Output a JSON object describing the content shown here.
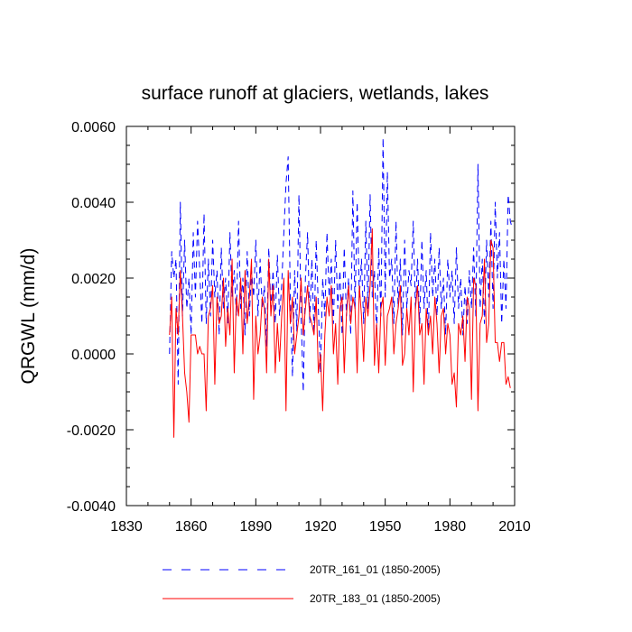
{
  "chart_data": {
    "type": "line",
    "title": "surface runoff at glaciers, wetlands, lakes",
    "xlabel": "",
    "ylabel": "QRGWL  (mm/d)",
    "xlim": [
      1830,
      2010
    ],
    "ylim": [
      -0.004,
      0.006
    ],
    "xticks": [
      1830,
      1860,
      1890,
      1920,
      1950,
      1980,
      2010
    ],
    "xtick_labels": [
      "1830",
      "1860",
      "1890",
      "1920",
      "1950",
      "1980",
      "2010"
    ],
    "yticks": [
      -0.004,
      -0.002,
      0.0,
      0.002,
      0.004,
      0.006
    ],
    "ytick_labels": [
      "-0.0040",
      "-0.0020",
      "0.0000",
      "0.0020",
      "0.0040",
      "0.0060"
    ],
    "x_start": 1850,
    "series": [
      {
        "name": "20TR_161_01 (1850-2005)",
        "color": "#0000ff",
        "dash": "dashed",
        "values": [
          0.0,
          0.0027,
          0.002,
          0.0025,
          -0.0008,
          0.004,
          0.001,
          0.003,
          0.0012,
          0.002,
          0.0005,
          0.0032,
          0.0015,
          0.0035,
          0.0022,
          0.0008,
          0.0037,
          0.0008,
          0.0025,
          0.001,
          0.003,
          0.0015,
          0.0022,
          0.0005,
          0.0028,
          0.0012,
          0.002,
          0.0008,
          0.0032,
          0.0015,
          0.0022,
          0.001,
          0.0035,
          0.0012,
          0.002,
          0.0005,
          0.0027,
          0.001,
          0.0022,
          0.0015,
          0.003,
          0.001,
          0.0025,
          0.0012,
          0.0018,
          0.0002,
          0.0028,
          0.0012,
          0.0022,
          0.0008,
          0.0026,
          0.001,
          0.0018,
          0.0032,
          0.0045,
          0.0052,
          0.0015,
          -0.0006,
          0.0022,
          0.0006,
          0.0042,
          0.001,
          -0.001,
          0.002,
          0.0032,
          0.0008,
          0.0025,
          0.0005,
          0.003,
          0.0012,
          -0.0005,
          0.002,
          0.001,
          0.0032,
          0.0015,
          0.0025,
          0.0008,
          0.003,
          0.0012,
          0.0022,
          0.0005,
          0.0028,
          0.001,
          0.002,
          0.0005,
          0.0043,
          0.0012,
          0.004,
          0.0015,
          0.0025,
          0.0008,
          0.0035,
          0.0012,
          0.0042,
          0.0015,
          0.0022,
          0.0005,
          0.0028,
          0.001,
          0.0057,
          0.0015,
          0.0048,
          0.002,
          0.0025,
          0.0008,
          0.0035,
          0.0012,
          0.0025,
          0.0005,
          0.003,
          0.0012,
          0.0022,
          0.0018,
          0.0035,
          0.0012,
          0.0025,
          0.0008,
          0.003,
          0.0012,
          0.0022,
          0.0005,
          0.0032,
          0.0015,
          0.0025,
          0.001,
          0.0028,
          0.0012,
          0.002,
          0.0005,
          0.0025,
          0.0015,
          0.0022,
          0.0008,
          0.0028,
          0.0012,
          0.002,
          0.0005,
          0.0018,
          0.0008,
          0.0022,
          0.0012,
          0.0028,
          0.001,
          0.005,
          0.0012,
          0.0025,
          0.0008,
          0.003,
          0.0015,
          0.0035,
          0.0012,
          0.004,
          0.002,
          0.0032,
          0.0008,
          0.0025,
          0.0012,
          0.0042,
          0.0035,
          0.0033
        ]
      },
      {
        "name": "20TR_183_01 (1850-2005)",
        "color": "#ff0000",
        "dash": "solid",
        "values": [
          0.0005,
          0.0015,
          -0.0022,
          0.0012,
          0.0005,
          0.0022,
          0.001,
          -0.0005,
          -0.001,
          -0.0018,
          0.0005,
          0.0005,
          0.0005,
          0.0,
          0.0002,
          0.0,
          0.0,
          -0.0015,
          0.001,
          0.0012,
          0.0018,
          -0.0008,
          0.0015,
          0.0008,
          0.001,
          0.002,
          0.0002,
          0.0012,
          0.0005,
          0.0025,
          -0.0005,
          0.0015,
          0.001,
          0.002,
          0.0,
          0.0022,
          0.0008,
          0.0015,
          0.0025,
          -0.0012,
          0.001,
          0.0,
          0.0005,
          0.0015,
          0.0012,
          -0.0005,
          0.0025,
          0.001,
          0.0018,
          -0.0005,
          0.0008,
          -0.0002,
          0.001,
          0.002,
          -0.0015,
          0.0022,
          0.0008,
          0.0015,
          0.0,
          0.0005,
          0.001,
          0.002,
          0.0005,
          0.0012,
          0.0018,
          0.001,
          0.0008,
          0.0005,
          0.0015,
          -0.0005,
          0.0,
          -0.0015,
          0.0005,
          0.0015,
          0.001,
          0.0018,
          0.0,
          0.0008,
          -0.0008,
          0.0012,
          0.0015,
          -0.0005,
          0.001,
          0.0018,
          0.0008,
          0.0015,
          0.0012,
          -0.0005,
          0.0018,
          0.001,
          -0.0002,
          0.0015,
          0.001,
          0.0018,
          0.0033,
          -0.0003,
          0.0008,
          -0.0005,
          0.0012,
          0.0015,
          -0.0003,
          0.001,
          0.0012,
          0.0015,
          0.0,
          0.0008,
          0.0012,
          0.0018,
          -0.0003,
          0.0,
          0.0012,
          0.0005,
          0.0015,
          -0.001,
          0.0012,
          0.0018,
          0.0005,
          0.0008,
          -0.0008,
          0.0012,
          0.0005,
          0.001,
          0.0,
          0.0015,
          0.0008,
          -0.0005,
          0.001,
          0.0012,
          0.0,
          0.0008,
          0.0005,
          -0.0008,
          -0.0005,
          -0.0014,
          0.0008,
          0.0005,
          0.001,
          -0.0002,
          0.0015,
          0.0012,
          -0.0012,
          0.002,
          0.0018,
          -0.0015,
          0.0008,
          0.001,
          0.0025,
          0.0003,
          0.0008,
          0.003,
          0.0028,
          0.0003,
          0.0003,
          -0.0002,
          0.0003,
          0.0003,
          -0.0008,
          -0.0006,
          -0.0009
        ]
      }
    ]
  }
}
